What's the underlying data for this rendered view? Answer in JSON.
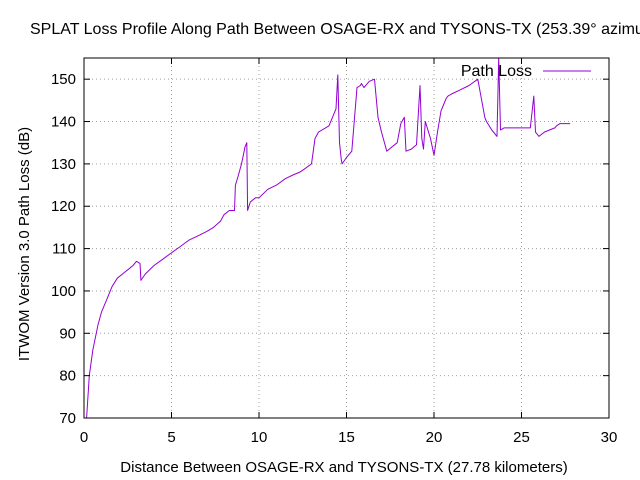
{
  "chart_data": {
    "type": "line",
    "title": "SPLAT Loss Profile Along Path Between OSAGE-RX and TYSONS-TX (253.39° azimuth)",
    "xlabel": "Distance Between OSAGE-RX and TYSONS-TX (27.78 kilometers)",
    "ylabel": "ITWOM Version 3.0 Path Loss (dB)",
    "xlim": [
      0,
      30
    ],
    "ylim": [
      70,
      155
    ],
    "xticks": [
      0,
      5,
      10,
      15,
      20,
      25,
      30
    ],
    "yticks": [
      70,
      80,
      90,
      100,
      110,
      120,
      130,
      140,
      150
    ],
    "grid": true,
    "legend": "top-right",
    "series": [
      {
        "name": "Path Loss",
        "color": "#9400d3",
        "x": [
          0.15,
          0.3,
          0.5,
          0.8,
          1.0,
          1.3,
          1.6,
          1.9,
          2.2,
          2.5,
          2.8,
          3.0,
          3.2,
          3.25,
          3.5,
          4.0,
          4.5,
          5.0,
          5.5,
          6.0,
          6.5,
          7.0,
          7.4,
          7.8,
          8.0,
          8.3,
          8.6,
          8.65,
          8.8,
          9.0,
          9.1,
          9.2,
          9.3,
          9.35,
          9.5,
          9.8,
          10.0,
          10.5,
          11.0,
          11.5,
          12.0,
          12.3,
          12.5,
          13.0,
          13.2,
          13.4,
          13.6,
          13.8,
          14.0,
          14.2,
          14.4,
          14.5,
          14.6,
          14.7,
          14.75,
          15.0,
          15.3,
          15.6,
          15.8,
          15.85,
          16.0,
          16.3,
          16.6,
          16.8,
          17.0,
          17.3,
          17.6,
          17.9,
          18.1,
          18.3,
          18.4,
          18.7,
          19.0,
          19.2,
          19.3,
          19.4,
          19.5,
          19.8,
          20.0,
          20.2,
          20.4,
          20.6,
          20.7,
          20.8,
          21.0,
          21.5,
          22.0,
          22.5,
          22.9,
          23.0,
          23.3,
          23.6,
          23.7,
          23.8,
          24.0,
          24.5,
          25.0,
          25.5,
          25.7,
          25.8,
          26.0,
          26.3,
          26.6,
          26.9,
          27.0,
          27.2,
          27.78
        ],
        "values": [
          70,
          80,
          86,
          92,
          95,
          98,
          101,
          103,
          104,
          105,
          106,
          107,
          106.5,
          102.5,
          104,
          106,
          107.5,
          109,
          110.5,
          112,
          113,
          114,
          115,
          116.5,
          118,
          119,
          119,
          125,
          127,
          130,
          132,
          134,
          135,
          119,
          121,
          122,
          122,
          124,
          125,
          126.5,
          127.5,
          128,
          128.5,
          130,
          136,
          137.5,
          138,
          138.5,
          139,
          141,
          143,
          151,
          135,
          131,
          130,
          131.5,
          133,
          148,
          148.5,
          149,
          148,
          149.5,
          150,
          141,
          137.5,
          133,
          134,
          135,
          139.5,
          141,
          133,
          133.5,
          134.5,
          148.5,
          136,
          133.5,
          140,
          136,
          132,
          137.5,
          142.5,
          144.5,
          145.5,
          146,
          146.5,
          147.5,
          148.5,
          150,
          141,
          140,
          138,
          136.5,
          155,
          138,
          138.5,
          138.5,
          138.5,
          138.5,
          146,
          137.5,
          136.5,
          137.5,
          138,
          138.5,
          139,
          139.5,
          139.5
        ]
      }
    ]
  }
}
